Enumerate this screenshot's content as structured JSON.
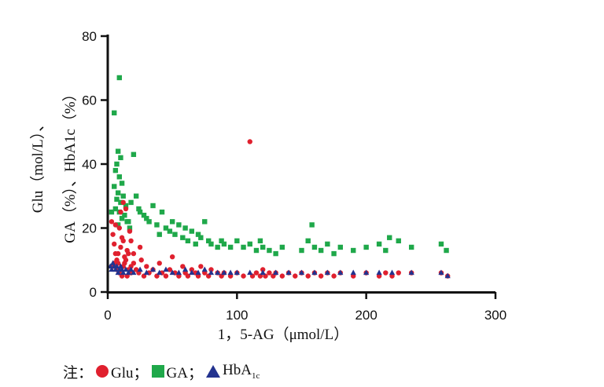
{
  "chart_data": {
    "type": "scatter",
    "x_label": "1，5-AG（μmol/L）",
    "y_label_line1": "Glu（mol/L）、",
    "y_label_line2": "GA（%）、HbA1c（%）",
    "xlim": [
      0,
      300
    ],
    "ylim": [
      0,
      80
    ],
    "x_ticks": [
      "0",
      "100",
      "200",
      "300"
    ],
    "y_ticks": [
      "0",
      "20",
      "40",
      "60",
      "80"
    ],
    "legend_prefix": "注：",
    "series": [
      {
        "name": "Glu；",
        "marker": "circle",
        "color": "#e0202e",
        "points": [
          [
            3,
            22
          ],
          [
            4,
            18
          ],
          [
            5,
            15
          ],
          [
            6,
            12
          ],
          [
            7,
            10
          ],
          [
            8,
            9
          ],
          [
            9,
            20
          ],
          [
            10,
            14
          ],
          [
            11,
            17
          ],
          [
            12,
            8
          ],
          [
            13,
            11
          ],
          [
            14,
            26
          ],
          [
            15,
            13
          ],
          [
            16,
            7
          ],
          [
            17,
            19
          ],
          [
            18,
            6
          ],
          [
            5,
            9
          ],
          [
            7,
            7
          ],
          [
            9,
            6
          ],
          [
            11,
            5
          ],
          [
            13,
            9
          ],
          [
            15,
            5
          ],
          [
            8,
            12
          ],
          [
            10,
            25
          ],
          [
            12,
            16
          ],
          [
            6,
            21
          ],
          [
            4,
            8
          ],
          [
            14,
            10
          ],
          [
            16,
            12
          ],
          [
            18,
            8
          ],
          [
            20,
            9
          ],
          [
            22,
            7
          ],
          [
            24,
            6
          ],
          [
            26,
            10
          ],
          [
            28,
            5
          ],
          [
            30,
            8
          ],
          [
            32,
            6
          ],
          [
            35,
            7
          ],
          [
            38,
            5
          ],
          [
            40,
            9
          ],
          [
            42,
            6
          ],
          [
            45,
            5
          ],
          [
            48,
            7
          ],
          [
            50,
            11
          ],
          [
            52,
            6
          ],
          [
            55,
            5
          ],
          [
            58,
            8
          ],
          [
            60,
            6
          ],
          [
            62,
            5
          ],
          [
            65,
            7
          ],
          [
            68,
            6
          ],
          [
            70,
            5
          ],
          [
            72,
            8
          ],
          [
            75,
            6
          ],
          [
            78,
            5
          ],
          [
            80,
            7
          ],
          [
            85,
            6
          ],
          [
            88,
            5
          ],
          [
            90,
            6
          ],
          [
            95,
            5
          ],
          [
            100,
            6
          ],
          [
            105,
            5
          ],
          [
            110,
            47
          ],
          [
            112,
            5
          ],
          [
            115,
            6
          ],
          [
            118,
            5
          ],
          [
            120,
            7
          ],
          [
            122,
            5
          ],
          [
            125,
            6
          ],
          [
            128,
            5
          ],
          [
            130,
            6
          ],
          [
            135,
            5
          ],
          [
            140,
            6
          ],
          [
            145,
            5
          ],
          [
            150,
            6
          ],
          [
            155,
            5
          ],
          [
            160,
            6
          ],
          [
            165,
            5
          ],
          [
            170,
            6
          ],
          [
            175,
            5
          ],
          [
            180,
            6
          ],
          [
            190,
            5
          ],
          [
            200,
            6
          ],
          [
            210,
            5
          ],
          [
            215,
            6
          ],
          [
            220,
            5
          ],
          [
            225,
            6
          ],
          [
            235,
            6
          ],
          [
            258,
            6
          ],
          [
            263,
            5
          ],
          [
            12,
            28
          ],
          [
            20,
            12
          ],
          [
            25,
            14
          ],
          [
            18,
            16
          ]
        ]
      },
      {
        "name": "GA；",
        "marker": "square",
        "color": "#1fa84a",
        "points": [
          [
            5,
            56
          ],
          [
            9,
            67
          ],
          [
            8,
            44
          ],
          [
            10,
            42
          ],
          [
            7,
            40
          ],
          [
            6,
            38
          ],
          [
            9,
            36
          ],
          [
            11,
            34
          ],
          [
            5,
            33
          ],
          [
            8,
            31
          ],
          [
            12,
            30
          ],
          [
            7,
            29
          ],
          [
            10,
            28
          ],
          [
            14,
            27
          ],
          [
            6,
            26
          ],
          [
            9,
            25
          ],
          [
            13,
            24
          ],
          [
            11,
            23
          ],
          [
            15,
            22
          ],
          [
            8,
            21
          ],
          [
            17,
            20
          ],
          [
            20,
            43
          ],
          [
            22,
            30
          ],
          [
            18,
            28
          ],
          [
            25,
            25
          ],
          [
            28,
            24
          ],
          [
            30,
            23
          ],
          [
            35,
            27
          ],
          [
            32,
            22
          ],
          [
            38,
            21
          ],
          [
            42,
            25
          ],
          [
            45,
            20
          ],
          [
            48,
            19
          ],
          [
            50,
            22
          ],
          [
            52,
            18
          ],
          [
            55,
            21
          ],
          [
            58,
            17
          ],
          [
            60,
            20
          ],
          [
            62,
            16
          ],
          [
            65,
            19
          ],
          [
            68,
            15
          ],
          [
            70,
            18
          ],
          [
            72,
            17
          ],
          [
            75,
            22
          ],
          [
            78,
            16
          ],
          [
            80,
            15
          ],
          [
            85,
            14
          ],
          [
            88,
            16
          ],
          [
            90,
            15
          ],
          [
            95,
            14
          ],
          [
            100,
            16
          ],
          [
            105,
            14
          ],
          [
            110,
            15
          ],
          [
            115,
            13
          ],
          [
            118,
            16
          ],
          [
            120,
            14
          ],
          [
            125,
            13
          ],
          [
            130,
            12
          ],
          [
            135,
            14
          ],
          [
            150,
            13
          ],
          [
            155,
            16
          ],
          [
            158,
            21
          ],
          [
            160,
            14
          ],
          [
            165,
            13
          ],
          [
            170,
            15
          ],
          [
            175,
            12
          ],
          [
            180,
            14
          ],
          [
            190,
            13
          ],
          [
            200,
            14
          ],
          [
            210,
            15
          ],
          [
            215,
            13
          ],
          [
            218,
            17
          ],
          [
            225,
            16
          ],
          [
            235,
            14
          ],
          [
            258,
            15
          ],
          [
            262,
            13
          ],
          [
            3,
            25
          ],
          [
            16,
            22
          ],
          [
            24,
            26
          ],
          [
            40,
            18
          ]
        ]
      },
      {
        "name": "HbA",
        "name_sub": "1c",
        "marker": "triangle",
        "color": "#23338f",
        "points": [
          [
            2,
            8
          ],
          [
            3,
            7
          ],
          [
            4,
            9
          ],
          [
            5,
            8
          ],
          [
            6,
            7
          ],
          [
            7,
            8
          ],
          [
            8,
            6
          ],
          [
            9,
            7
          ],
          [
            10,
            8
          ],
          [
            11,
            7
          ],
          [
            12,
            6
          ],
          [
            14,
            7
          ],
          [
            16,
            6
          ],
          [
            18,
            7
          ],
          [
            20,
            6
          ],
          [
            25,
            7
          ],
          [
            30,
            6
          ],
          [
            35,
            7
          ],
          [
            40,
            6
          ],
          [
            45,
            7
          ],
          [
            50,
            6
          ],
          [
            55,
            6
          ],
          [
            60,
            7
          ],
          [
            65,
            6
          ],
          [
            70,
            6
          ],
          [
            75,
            7
          ],
          [
            80,
            6
          ],
          [
            85,
            6
          ],
          [
            90,
            6
          ],
          [
            95,
            6
          ],
          [
            100,
            6
          ],
          [
            110,
            6
          ],
          [
            120,
            6
          ],
          [
            130,
            6
          ],
          [
            140,
            6
          ],
          [
            150,
            6
          ],
          [
            160,
            6
          ],
          [
            170,
            6
          ],
          [
            180,
            6
          ],
          [
            190,
            6
          ],
          [
            200,
            6
          ],
          [
            210,
            6
          ],
          [
            220,
            6
          ],
          [
            235,
            6
          ],
          [
            258,
            6
          ],
          [
            263,
            5
          ]
        ]
      }
    ]
  }
}
